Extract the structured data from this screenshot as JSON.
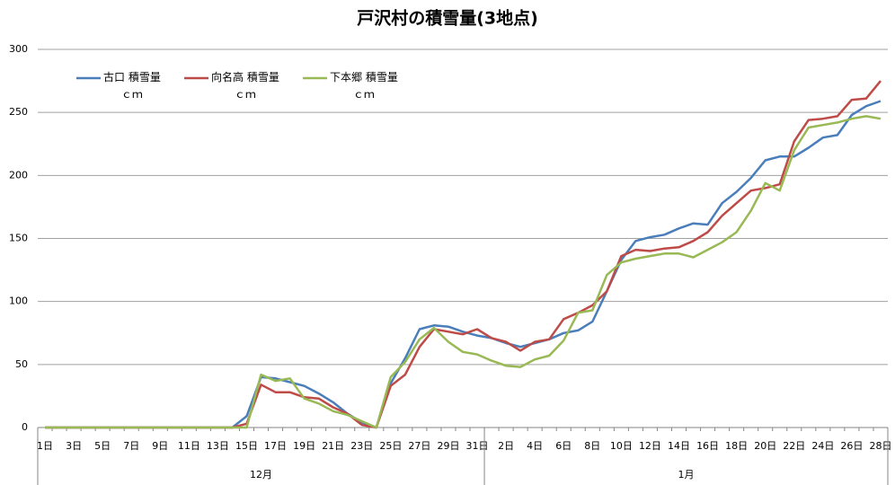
{
  "chart_data": {
    "type": "line",
    "title": "戸沢村の積雪量(3地点)",
    "category_groups": [
      {
        "label": "12月",
        "categories": [
          "1日",
          null,
          "3日",
          null,
          "5日",
          null,
          "7日",
          null,
          "9日",
          null,
          "11日",
          null,
          "13日",
          null,
          "15日",
          null,
          "17日",
          null,
          "19日",
          null,
          "21日",
          null,
          "23日",
          null,
          "25日",
          null,
          "27日",
          null,
          "29日",
          null,
          "31日"
        ]
      },
      {
        "label": "1月",
        "categories": [
          null,
          "2日",
          null,
          "4日",
          null,
          "6日",
          null,
          "8日",
          null,
          "10日",
          null,
          "12日",
          null,
          "14日",
          null,
          "16日",
          null,
          "18日",
          null,
          "20日",
          null,
          "22日",
          null,
          "24日",
          null,
          "26日",
          null,
          "28日"
        ]
      }
    ],
    "ylim": [
      0,
      300
    ],
    "yticks": [
      0,
      50,
      100,
      150,
      200,
      250,
      300
    ],
    "grid": true,
    "series": [
      {
        "name": "古口 積雪量\nｃｍ",
        "color": "#4a7ebb",
        "values": [
          0,
          0,
          0,
          0,
          0,
          0,
          0,
          0,
          0,
          0,
          0,
          0,
          0,
          0,
          9,
          40,
          39,
          36,
          33,
          27,
          20,
          11,
          4,
          0,
          35,
          55,
          78,
          81,
          80,
          76,
          73,
          71,
          67,
          64,
          67,
          70,
          75,
          77,
          84,
          108,
          133,
          148,
          151,
          153,
          158,
          162,
          161,
          178,
          187,
          198,
          212,
          215,
          215,
          222,
          230,
          232,
          248,
          255,
          259
        ]
      },
      {
        "name": "向名高 積雪量\nｃｍ",
        "color": "#be4b48",
        "values": [
          0,
          0,
          0,
          0,
          0,
          0,
          0,
          0,
          0,
          0,
          0,
          0,
          0,
          0,
          3,
          34,
          28,
          28,
          24,
          23,
          16,
          11,
          2,
          0,
          33,
          42,
          64,
          78,
          76,
          74,
          78,
          71,
          68,
          61,
          68,
          70,
          86,
          91,
          97,
          108,
          136,
          141,
          140,
          142,
          143,
          148,
          155,
          168,
          178,
          188,
          190,
          193,
          227,
          244,
          245,
          247,
          260,
          261,
          275
        ]
      },
      {
        "name": "下本郷 積雪量\nｃｍ",
        "color": "#98b954",
        "values": [
          0,
          0,
          0,
          0,
          0,
          0,
          0,
          0,
          0,
          0,
          0,
          0,
          0,
          0,
          0,
          42,
          37,
          39,
          23,
          19,
          13,
          10,
          5,
          0,
          40,
          52,
          70,
          79,
          68,
          60,
          58,
          53,
          49,
          48,
          54,
          57,
          69,
          91,
          93,
          121,
          131,
          134,
          136,
          138,
          138,
          135,
          141,
          147,
          155,
          172,
          194,
          188,
          220,
          238,
          240,
          242,
          245,
          247,
          245
        ]
      }
    ]
  }
}
